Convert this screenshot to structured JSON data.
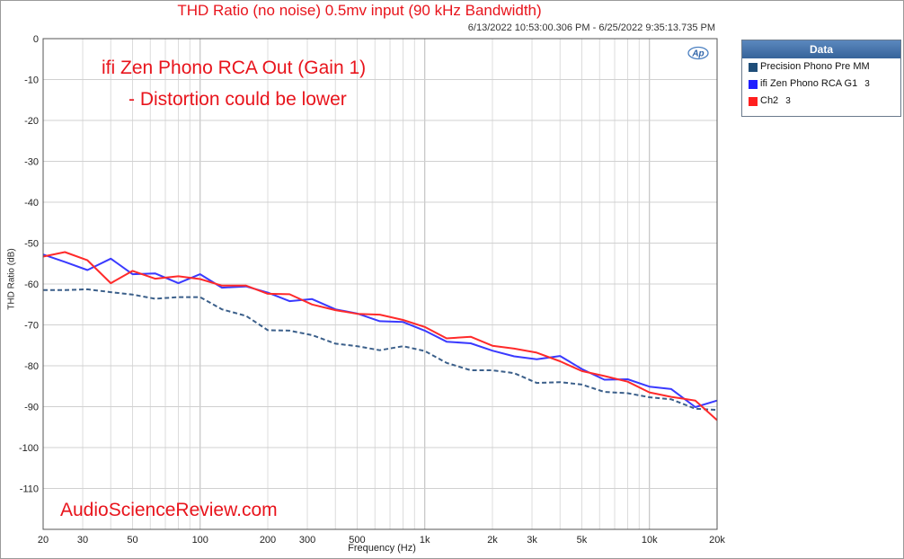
{
  "title": "THD Ratio (no noise) 0.5mv input (90 kHz Bandwidth)",
  "timestamp": "6/13/2022 10:53:00.306 PM - 6/25/2022 9:35:13.735 PM",
  "annotations": {
    "line1": "ifi Zen Phono RCA Out (Gain 1)",
    "line2": "- Distortion could be lower",
    "watermark": "AudioScienceReview.com"
  },
  "logo": "Ap",
  "legend": {
    "header": "Data",
    "items": [
      {
        "label": "Precision Phono Pre MM",
        "count": "",
        "color": "#1f4e79"
      },
      {
        "label": "ifi Zen Phono RCA G1",
        "count": "3",
        "color": "#1f1fff"
      },
      {
        "label": "Ch2",
        "count": "3",
        "color": "#ff1f1f"
      }
    ]
  },
  "chart_data": {
    "type": "line",
    "xlabel": "Frequency (Hz)",
    "ylabel": "THD Ratio (dB)",
    "xscale": "log",
    "xlim": [
      20,
      20000
    ],
    "ylim": [
      -120,
      0
    ],
    "x_ticks": [
      20,
      30,
      50,
      100,
      200,
      300,
      500,
      1000,
      2000,
      3000,
      5000,
      10000,
      20000
    ],
    "x_tick_labels": [
      "20",
      "30",
      "50",
      "100",
      "200",
      "300",
      "500",
      "1k",
      "2k",
      "3k",
      "5k",
      "10k",
      "20k"
    ],
    "y_ticks": [
      0,
      -10,
      -20,
      -30,
      -40,
      -50,
      -60,
      -70,
      -80,
      -90,
      -100,
      -110
    ],
    "grid": true,
    "legend_position": "right",
    "series": [
      {
        "name": "Precision Phono Pre MM",
        "color": "#3b5f8a",
        "dash": true,
        "x": [
          20,
          25,
          31.5,
          40,
          50,
          63,
          80,
          100,
          125,
          160,
          200,
          250,
          315,
          400,
          500,
          630,
          800,
          1000,
          1250,
          1600,
          2000,
          2500,
          3150,
          4000,
          5000,
          6300,
          8000,
          10000,
          12500,
          16000,
          20000
        ],
        "y": [
          -61.5,
          -61.5,
          -61.3,
          -62,
          -62.6,
          -63.6,
          -63.2,
          -63.2,
          -66.2,
          -67.8,
          -71.3,
          -71.4,
          -72.5,
          -74.6,
          -75.2,
          -76.2,
          -75.2,
          -76.4,
          -79.3,
          -81.1,
          -81.1,
          -81.8,
          -84.2,
          -84,
          -84.6,
          -86.4,
          -86.7,
          -87.7,
          -88.2,
          -90.5,
          -90.8
        ]
      },
      {
        "name": "ifi Zen Phono RCA G1",
        "color": "#3a3aff",
        "dash": false,
        "x": [
          20,
          25,
          31.5,
          40,
          50,
          63,
          80,
          100,
          125,
          160,
          200,
          250,
          315,
          400,
          500,
          630,
          800,
          1000,
          1250,
          1600,
          2000,
          2500,
          3150,
          4000,
          5000,
          6300,
          8000,
          10000,
          12500,
          16000,
          20000
        ],
        "y": [
          -52.8,
          -54.6,
          -56.6,
          -53.8,
          -57.6,
          -57.4,
          -59.8,
          -57.6,
          -60.9,
          -60.6,
          -62.1,
          -64.2,
          -63.7,
          -66.2,
          -67.2,
          -69.1,
          -69.3,
          -71.4,
          -74.1,
          -74.5,
          -76.3,
          -77.7,
          -78.4,
          -77.6,
          -80.8,
          -83.4,
          -83.3,
          -85.1,
          -85.7,
          -90.1,
          -88.5
        ]
      },
      {
        "name": "Ch2",
        "color": "#ff2a2a",
        "dash": false,
        "x": [
          20,
          25,
          31.5,
          40,
          50,
          63,
          80,
          100,
          125,
          160,
          200,
          250,
          315,
          400,
          500,
          630,
          800,
          1000,
          1250,
          1600,
          2000,
          2500,
          3150,
          4000,
          5000,
          6300,
          8000,
          10000,
          12500,
          16000,
          20000
        ],
        "y": [
          -53.3,
          -52.2,
          -54.2,
          -59.8,
          -56.8,
          -58.7,
          -58.1,
          -58.8,
          -60.4,
          -60.4,
          -62.4,
          -62.5,
          -65,
          -66.4,
          -67.3,
          -67.5,
          -68.8,
          -70.5,
          -73.3,
          -72.9,
          -75.1,
          -75.8,
          -76.8,
          -78.9,
          -81.3,
          -82.5,
          -83.9,
          -86.5,
          -87.6,
          -88.5,
          -93.3
        ]
      }
    ]
  }
}
